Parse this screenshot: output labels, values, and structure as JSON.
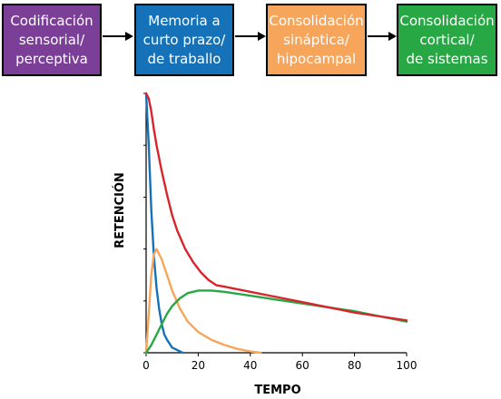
{
  "stages": [
    {
      "label": "Codificación\nsensorial/\nperceptiva",
      "color": "#7b3f98"
    },
    {
      "label": "Memoria a\ncurto prazo/\nde traballo",
      "color": "#1572b9"
    },
    {
      "label": "Consolidación\nsináptica/\nhipocampal",
      "color": "#f7a55a"
    },
    {
      "label": "Consolidación\ncortical/\nde sistemas",
      "color": "#27a845"
    }
  ],
  "chart_data": {
    "type": "line",
    "xlabel": "TEMPO",
    "ylabel": "RETENCIÓN",
    "xlim": [
      0,
      100
    ],
    "ylim": [
      0,
      1
    ],
    "x_ticks": [
      "0",
      "20",
      "40",
      "60",
      "80",
      "100"
    ],
    "y_ticks_labeled": false,
    "grid": false,
    "legend": "none",
    "series": [
      {
        "color": "#1572b9",
        "x": [
          0,
          1,
          2,
          3,
          4,
          5,
          6,
          7,
          8,
          10,
          12,
          14
        ],
        "y": [
          1.0,
          0.8,
          0.55,
          0.37,
          0.25,
          0.17,
          0.11,
          0.07,
          0.05,
          0.02,
          0.01,
          0.0
        ]
      },
      {
        "color": "#f7a55a",
        "x": [
          0,
          1,
          2,
          3,
          4,
          6,
          8,
          10,
          13,
          16,
          20,
          25,
          30,
          35,
          40,
          44
        ],
        "y": [
          0.0,
          0.15,
          0.3,
          0.38,
          0.4,
          0.36,
          0.3,
          0.24,
          0.17,
          0.12,
          0.08,
          0.05,
          0.03,
          0.015,
          0.005,
          0.0
        ]
      },
      {
        "color": "#27a845",
        "x": [
          0,
          2,
          4,
          6,
          8,
          10,
          13,
          16,
          20,
          25,
          30,
          40,
          50,
          60,
          70,
          80,
          90,
          100
        ],
        "y": [
          0.0,
          0.03,
          0.07,
          0.11,
          0.15,
          0.18,
          0.21,
          0.23,
          0.24,
          0.24,
          0.235,
          0.22,
          0.205,
          0.19,
          0.175,
          0.16,
          0.14,
          0.12
        ]
      },
      {
        "color": "#d7252c",
        "x": [
          0,
          1,
          2,
          3,
          4,
          6,
          8,
          10,
          12,
          15,
          18,
          21,
          24,
          27,
          30,
          40,
          50,
          60,
          70,
          80,
          90,
          100
        ],
        "y": [
          1.0,
          0.98,
          0.93,
          0.86,
          0.8,
          0.7,
          0.61,
          0.53,
          0.47,
          0.4,
          0.35,
          0.31,
          0.28,
          0.26,
          0.255,
          0.235,
          0.215,
          0.195,
          0.175,
          0.155,
          0.14,
          0.125
        ]
      }
    ]
  }
}
